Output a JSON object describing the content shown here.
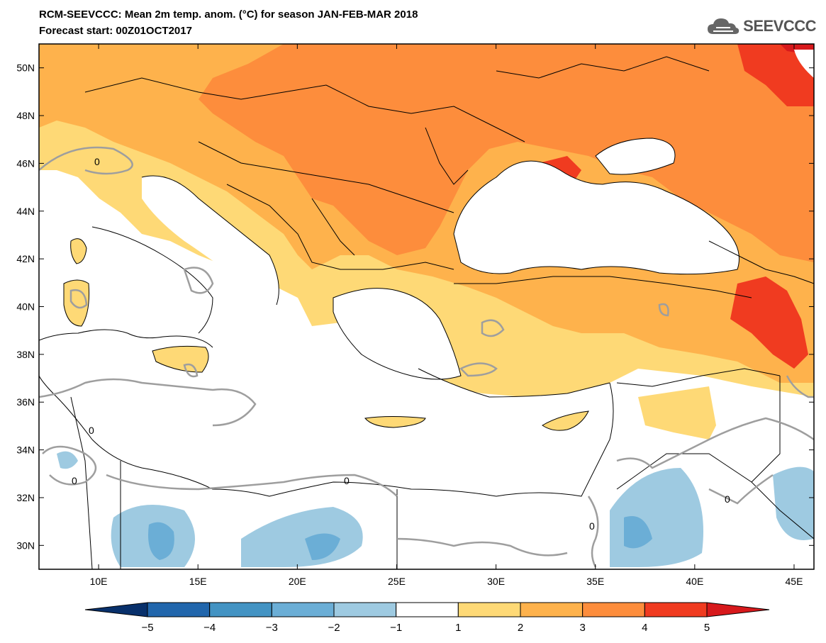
{
  "title_line1": "RCM-SEEVCCC: Mean 2m temp. anom. (°C) for season JAN-FEB-MAR 2018",
  "title_line2": "Forecast start: 00Z01OCT2017",
  "logo_text": "SEEVCCC",
  "map": {
    "lon_range": [
      7,
      46
    ],
    "lat_range": [
      29,
      51
    ],
    "lon_ticks": [
      "10E",
      "15E",
      "20E",
      "25E",
      "30E",
      "35E",
      "40E",
      "45E"
    ],
    "lat_ticks": [
      "50N",
      "48N",
      "46N",
      "44N",
      "42N",
      "40N",
      "38N",
      "36N",
      "34N",
      "32N",
      "30N"
    ],
    "contour_label": "0"
  },
  "colorbar": {
    "labels": [
      "−5",
      "−4",
      "−3",
      "−2",
      "−1",
      "1",
      "2",
      "3",
      "4",
      "5"
    ],
    "colors": [
      "#08306b",
      "#2166ac",
      "#4393c3",
      "#6baed6",
      "#9ecae1",
      "#ffffff",
      "#fed976",
      "#feb24c",
      "#fd8d3c",
      "#f03b20",
      "#d7191c"
    ]
  }
}
